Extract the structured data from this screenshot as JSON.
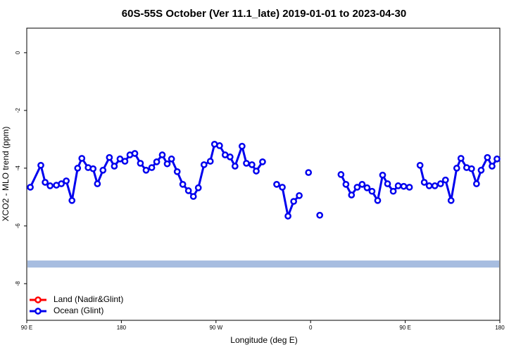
{
  "chart_data": {
    "type": "line",
    "title": "60S-55S October (Ver 11.1_late)   2019-01-01 to 2023-04-30",
    "x_label": "Longitude (deg E)",
    "y_label": "XCO2 - MLO trend (ppm)",
    "xlim": [
      90,
      540
    ],
    "xticks": [
      {
        "value": 90,
        "label": "90 E"
      },
      {
        "value": 180,
        "label": "180"
      },
      {
        "value": 270,
        "label": "90 W"
      },
      {
        "value": 360,
        "label": "0"
      },
      {
        "value": 450,
        "label": "90 E"
      },
      {
        "value": 540,
        "label": "180"
      }
    ],
    "ylim": [
      -9.27,
      0.85
    ],
    "yticks": [
      0,
      -2,
      -4,
      -6,
      -8
    ],
    "legend": "bottom-left",
    "reference_band": {
      "value": -7.32,
      "color": "#a7bde0"
    },
    "x": [
      93.4,
      103.4,
      107.5,
      112.2,
      118.2,
      122.9,
      127.6,
      133.0,
      138.4,
      142.4,
      148.4,
      153.1,
      157.2,
      162.5,
      168.6,
      173.3,
      178.7,
      183.4,
      188.1,
      192.8,
      198.1,
      203.5,
      208.9,
      213.6,
      218.9,
      223.6,
      227.7,
      233.1,
      238.4,
      243.8,
      248.5,
      253.2,
      258.6,
      264.6,
      268.6,
      273.4,
      278.7,
      283.4,
      288.1,
      294.8,
      298.9,
      304.2,
      308.3,
      314.3,
      null,
      327.7,
      333.1,
      338.5,
      343.9,
      349.2,
      null,
      358.0,
      null,
      368.7,
      null,
      388.9,
      393.6,
      398.9,
      404.3,
      409.0,
      413.7,
      418.4,
      423.8,
      428.5,
      433.2,
      438.6,
      443.3,
      448.6,
      454.0,
      null,
      464.1,
      468.1,
      472.8,
      478.2,
      483.6,
      488.3,
      493.6,
      499.0,
      503.0,
      508.4,
      513.1,
      517.8,
      522.2,
      528.2,
      532.6,
      537.3
    ],
    "series": [
      {
        "name": "Land (Nadir&Glint)",
        "color": "#ff0000",
        "values": [
          null,
          null,
          null,
          null,
          null,
          null,
          null,
          null,
          null,
          null,
          null,
          null,
          null,
          null,
          null,
          null,
          null,
          null,
          null,
          null,
          null,
          null,
          null,
          null,
          null,
          null,
          null,
          null,
          null,
          null,
          null,
          null,
          null,
          null,
          null,
          null,
          null,
          null,
          null,
          null,
          null,
          null,
          null,
          null,
          null,
          null,
          null,
          null,
          null,
          null,
          null,
          null,
          null,
          null,
          null,
          null,
          null,
          null,
          null,
          null,
          null,
          null,
          null,
          null,
          null,
          null,
          null,
          null,
          null,
          null,
          null,
          null,
          null,
          null,
          null,
          null,
          null,
          null,
          null,
          null,
          null,
          null,
          null,
          null,
          null,
          null
        ]
      },
      {
        "name": "Ocean (Glint)",
        "color": "#0000ee",
        "values": [
          -4.66,
          -3.9,
          -4.49,
          -4.61,
          -4.59,
          -4.54,
          -4.44,
          -5.12,
          -4.0,
          -3.66,
          -3.98,
          -4.02,
          -4.54,
          -4.07,
          -3.63,
          -3.93,
          -3.68,
          -3.76,
          -3.54,
          -3.49,
          -3.83,
          -4.07,
          -3.98,
          -3.78,
          -3.54,
          -3.85,
          -3.68,
          -4.12,
          -4.56,
          -4.78,
          -4.98,
          -4.68,
          -3.88,
          -3.76,
          -3.17,
          -3.22,
          -3.54,
          -3.61,
          -3.93,
          -3.24,
          -3.83,
          -3.88,
          -4.1,
          -3.78,
          null,
          -4.56,
          -4.66,
          -5.66,
          -5.15,
          -4.95,
          null,
          -4.15,
          null,
          -5.63,
          null,
          -4.22,
          -4.56,
          -4.93,
          -4.66,
          -4.56,
          -4.68,
          -4.8,
          -5.12,
          -4.24,
          -4.54,
          -4.8,
          -4.61,
          -4.63,
          -4.66,
          null,
          -3.9,
          -4.49,
          -4.61,
          -4.61,
          -4.54,
          -4.41,
          -5.12,
          -4.0,
          -3.66,
          -3.98,
          -4.02,
          -4.54,
          -4.07,
          -3.63,
          -3.93,
          -3.68
        ]
      }
    ]
  }
}
